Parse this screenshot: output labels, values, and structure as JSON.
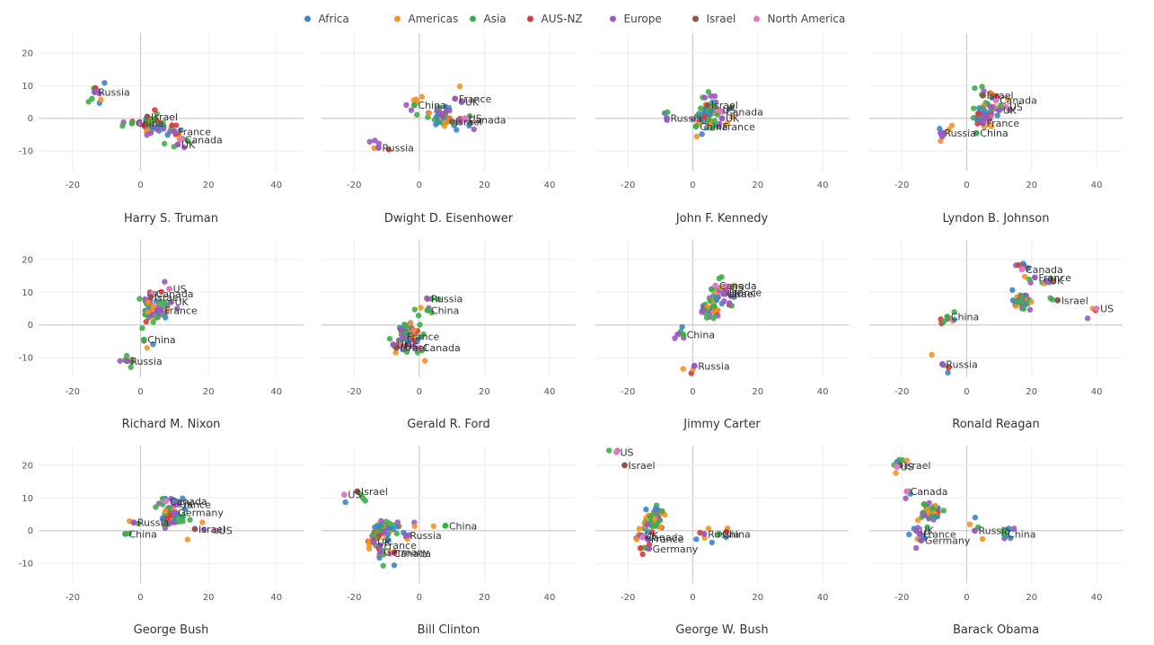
{
  "chart_data": {
    "type": "scatter",
    "legend": {
      "placement": "top-center",
      "entries": [
        {
          "name": "Africa",
          "color": "#3a86c6"
        },
        {
          "name": "Americas",
          "color": "#f39322"
        },
        {
          "name": "Asia",
          "color": "#3fae49"
        },
        {
          "name": "AUS-NZ",
          "color": "#d93a38"
        },
        {
          "name": "Europe",
          "color": "#9b59c4"
        },
        {
          "name": "Israel",
          "color": "#8c564b"
        },
        {
          "name": "North America",
          "color": "#e377c2"
        }
      ]
    },
    "xlim": [
      -30,
      48
    ],
    "ylim": [
      -16,
      26
    ],
    "xticks": [
      -20,
      0,
      20,
      40
    ],
    "yticks": [
      -10,
      0,
      10,
      20
    ],
    "grid": true,
    "panels": [
      {
        "title": "Harry S. Truman",
        "labels": [
          {
            "text": "Russia",
            "x": -13.5,
            "y": 8
          },
          {
            "text": "Israel",
            "x": 2,
            "y": 0.5
          },
          {
            "text": "China",
            "x": -2.5,
            "y": -1.5
          },
          {
            "text": "France",
            "x": 10,
            "y": -4
          },
          {
            "text": "Canada",
            "x": 12,
            "y": -6.5
          },
          {
            "text": "UK",
            "x": 11,
            "y": -8
          }
        ]
      },
      {
        "title": "Dwight D. Eisenhower",
        "labels": [
          {
            "text": "France",
            "x": 11,
            "y": 6
          },
          {
            "text": "UK",
            "x": 13,
            "y": 5
          },
          {
            "text": "China",
            "x": -1.5,
            "y": 4
          },
          {
            "text": "US",
            "x": 14,
            "y": 0
          },
          {
            "text": "Israel",
            "x": 10,
            "y": -1
          },
          {
            "text": "Canada",
            "x": 14,
            "y": -0.5
          },
          {
            "text": "Russia",
            "x": -12.5,
            "y": -9
          }
        ]
      },
      {
        "title": "John F. Kennedy",
        "labels": [
          {
            "text": "Israel",
            "x": 4.5,
            "y": 4
          },
          {
            "text": "US",
            "x": 8,
            "y": 2.5
          },
          {
            "text": "Canada",
            "x": 9,
            "y": 2
          },
          {
            "text": "UK",
            "x": 9,
            "y": 0
          },
          {
            "text": "Russia",
            "x": -8,
            "y": 0
          },
          {
            "text": "China",
            "x": 1,
            "y": -2.5
          },
          {
            "text": "France",
            "x": 8,
            "y": -2.5
          }
        ]
      },
      {
        "title": "Lyndon B. Johnson",
        "labels": [
          {
            "text": "Israel",
            "x": 5,
            "y": 7
          },
          {
            "text": "Canada",
            "x": 9,
            "y": 5.5
          },
          {
            "text": "US",
            "x": 12,
            "y": 3.5
          },
          {
            "text": "UK",
            "x": 10,
            "y": 2.5
          },
          {
            "text": "France",
            "x": 5,
            "y": -1.5
          },
          {
            "text": "Russia",
            "x": -8,
            "y": -4.5
          },
          {
            "text": "China",
            "x": 3,
            "y": -4.5
          }
        ]
      },
      {
        "title": "Richard M. Nixon",
        "labels": [
          {
            "text": "US",
            "x": 8.5,
            "y": 11
          },
          {
            "text": "Canada",
            "x": 3.5,
            "y": 9.5
          },
          {
            "text": "Israel",
            "x": 3,
            "y": 8.5
          },
          {
            "text": "UK",
            "x": 9,
            "y": 7
          },
          {
            "text": "France",
            "x": 6,
            "y": 4.5
          },
          {
            "text": "China",
            "x": 1,
            "y": -4.5
          },
          {
            "text": "Russia",
            "x": -4,
            "y": -11
          }
        ]
      },
      {
        "title": "Gerald R. Ford",
        "labels": [
          {
            "text": "Russia",
            "x": 2.5,
            "y": 8
          },
          {
            "text": "China",
            "x": 2.5,
            "y": 4.5
          },
          {
            "text": "France",
            "x": -5,
            "y": -3.5
          },
          {
            "text": "UK",
            "x": -8,
            "y": -6
          },
          {
            "text": "US",
            "x": -5.5,
            "y": -6.5
          },
          {
            "text": "Israel",
            "x": -7,
            "y": -7
          },
          {
            "text": "Canada",
            "x": 0,
            "y": -7
          }
        ]
      },
      {
        "title": "Jimmy Carter",
        "labels": [
          {
            "text": "Canada",
            "x": 7,
            "y": 12
          },
          {
            "text": "US",
            "x": 10.5,
            "y": 11.5
          },
          {
            "text": "France",
            "x": 10,
            "y": 10
          },
          {
            "text": "Israel",
            "x": 10,
            "y": 9.5
          },
          {
            "text": "UK",
            "x": 9.5,
            "y": 9.5
          },
          {
            "text": "China",
            "x": -3,
            "y": -3
          },
          {
            "text": "Russia",
            "x": 0.5,
            "y": -12.5
          }
        ]
      },
      {
        "title": "Ronald Reagan",
        "labels": [
          {
            "text": "Canada",
            "x": 17,
            "y": 17
          },
          {
            "text": "France",
            "x": 21,
            "y": 14.5
          },
          {
            "text": "UK",
            "x": 24.5,
            "y": 13.5
          },
          {
            "text": "Israel",
            "x": 28,
            "y": 7.5
          },
          {
            "text": "US",
            "x": 40,
            "y": 5
          },
          {
            "text": "China",
            "x": -6,
            "y": 2.5
          },
          {
            "text": "Russia",
            "x": -7.5,
            "y": -12
          }
        ]
      },
      {
        "title": "George Bush",
        "labels": [
          {
            "text": "Canada",
            "x": 7.5,
            "y": 9
          },
          {
            "text": "UK",
            "x": 10.5,
            "y": 8
          },
          {
            "text": "France",
            "x": 10,
            "y": 8
          },
          {
            "text": "Germany",
            "x": 10,
            "y": 5.5
          },
          {
            "text": "Russia",
            "x": -2,
            "y": 2.5
          },
          {
            "text": "China",
            "x": -4.5,
            "y": -1
          },
          {
            "text": "Israel",
            "x": 16,
            "y": 0.5
          },
          {
            "text": "US",
            "x": 22,
            "y": 0
          }
        ]
      },
      {
        "title": "Bill Clinton",
        "labels": [
          {
            "text": "Israel",
            "x": -19,
            "y": 12
          },
          {
            "text": "US",
            "x": -23,
            "y": 11
          },
          {
            "text": "China",
            "x": 8,
            "y": 1.5
          },
          {
            "text": "Russia",
            "x": -4,
            "y": -1.5
          },
          {
            "text": "UK",
            "x": -14,
            "y": -3.5
          },
          {
            "text": "France",
            "x": -12,
            "y": -4.5
          },
          {
            "text": "Germany",
            "x": -12,
            "y": -6.5
          },
          {
            "text": "Canada",
            "x": -9,
            "y": -7
          }
        ]
      },
      {
        "title": "George W. Bush",
        "labels": [
          {
            "text": "US",
            "x": -23.5,
            "y": 24
          },
          {
            "text": "Israel",
            "x": -21,
            "y": 20
          },
          {
            "text": "Russia",
            "x": 3.5,
            "y": -1
          },
          {
            "text": "China",
            "x": 8,
            "y": -1
          },
          {
            "text": "UK",
            "x": -16,
            "y": -1.5
          },
          {
            "text": "Canada",
            "x": -15.5,
            "y": -2
          },
          {
            "text": "France",
            "x": -14,
            "y": -2.5
          },
          {
            "text": "Germany",
            "x": -13.5,
            "y": -5.5
          }
        ]
      },
      {
        "title": "Barack Obama",
        "labels": [
          {
            "text": "Israel",
            "x": -20.5,
            "y": 20
          },
          {
            "text": "US",
            "x": -21.5,
            "y": 19.5
          },
          {
            "text": "Canada",
            "x": -18.5,
            "y": 12
          },
          {
            "text": "UK",
            "x": -15.5,
            "y": 0
          },
          {
            "text": "France",
            "x": -14.5,
            "y": -1
          },
          {
            "text": "Russia",
            "x": 2.5,
            "y": 0
          },
          {
            "text": "China",
            "x": 11.5,
            "y": -1
          },
          {
            "text": "Germany",
            "x": -14,
            "y": -3
          }
        ]
      }
    ]
  }
}
